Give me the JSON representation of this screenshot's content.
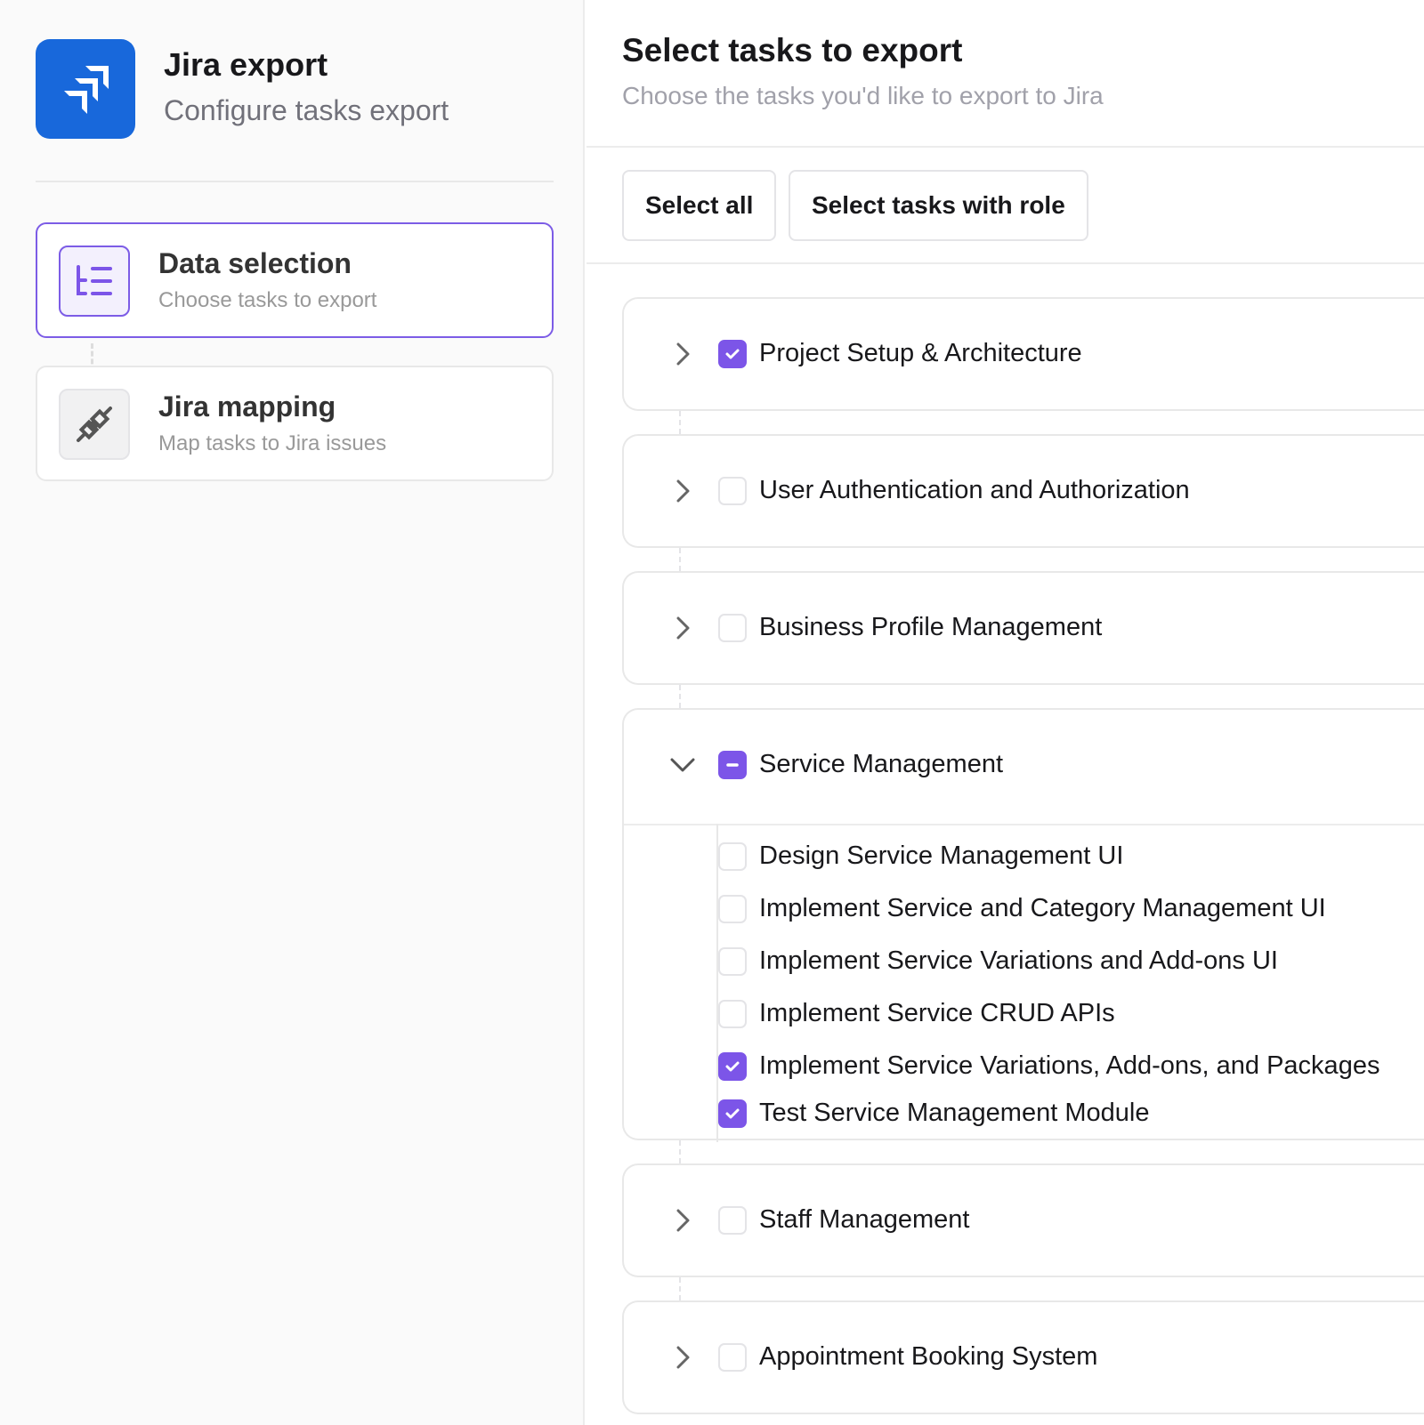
{
  "sidebar": {
    "app_title": "Jira export",
    "app_subtitle": "Configure tasks export",
    "steps": [
      {
        "title": "Data selection",
        "subtitle": "Choose tasks to export",
        "active": true,
        "icon": "list-tree-icon"
      },
      {
        "title": "Jira mapping",
        "subtitle": "Map tasks to Jira issues",
        "active": false,
        "icon": "plug-icon"
      }
    ]
  },
  "main": {
    "title": "Select tasks to export",
    "subtitle": "Choose the tasks you'd like to export to Jira",
    "select_all": "Select all",
    "select_role": "Select tasks with role",
    "groups": [
      {
        "label": "Project Setup & Architecture",
        "state": "checked",
        "expanded": false
      },
      {
        "label": "User Authentication and Authorization",
        "state": "unchecked",
        "expanded": false
      },
      {
        "label": "Business Profile Management",
        "state": "unchecked",
        "expanded": false
      },
      {
        "label": "Service Management",
        "state": "indeterminate",
        "expanded": true,
        "tasks": [
          {
            "label": "Design Service Management UI",
            "checked": false
          },
          {
            "label": "Implement Service and Category Management UI",
            "checked": false
          },
          {
            "label": "Implement Service Variations and Add-ons UI",
            "checked": false
          },
          {
            "label": "Implement Service CRUD APIs",
            "checked": false
          },
          {
            "label": "Implement Service Variations, Add-ons, and Packages",
            "checked": true
          },
          {
            "label": "Test Service Management Module",
            "checked": true
          }
        ]
      },
      {
        "label": "Staff Management",
        "state": "unchecked",
        "expanded": false
      },
      {
        "label": "Appointment Booking System",
        "state": "unchecked",
        "expanded": false
      }
    ]
  },
  "colors": {
    "accent": "#7c55e8",
    "jira_blue": "#1868db"
  }
}
